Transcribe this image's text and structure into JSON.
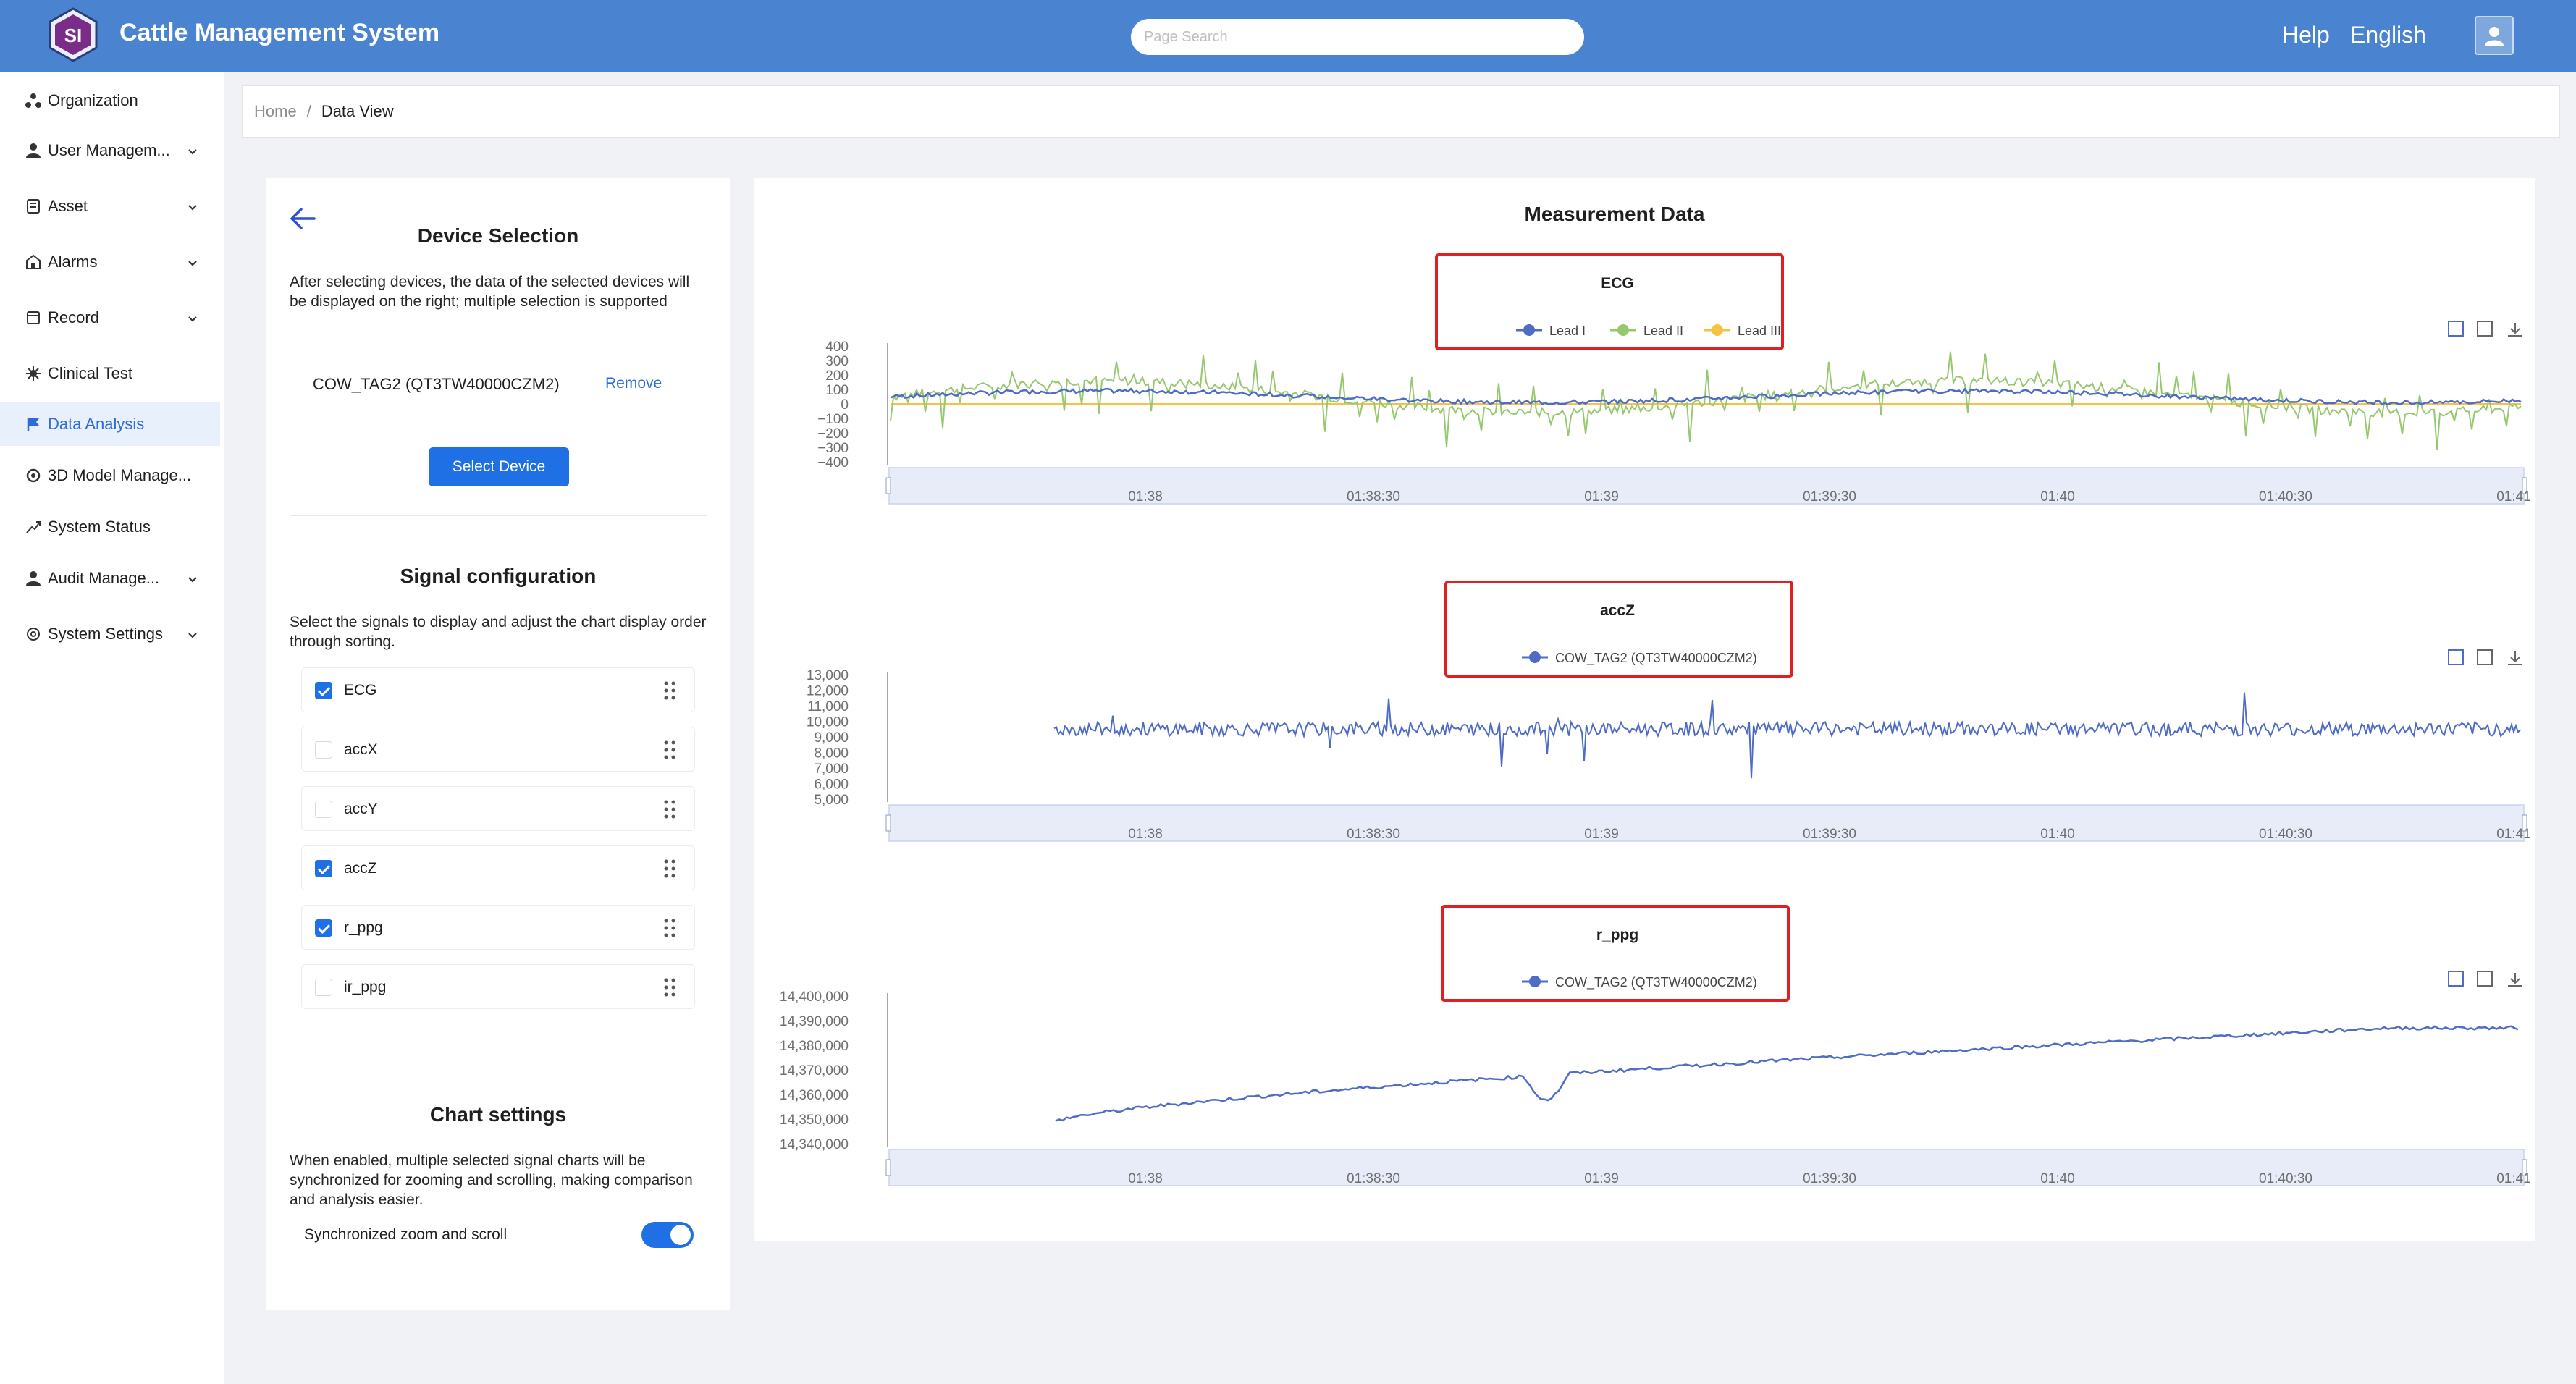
{
  "header": {
    "logo_text": "SI",
    "title": "Cattle Management System",
    "search_placeholder": "Page Search",
    "help": "Help",
    "language": "English"
  },
  "sidebar": {
    "items": [
      {
        "label": "Organization",
        "icon": "organization-icon",
        "expandable": false,
        "active": false
      },
      {
        "label": "User Managem...",
        "icon": "user-icon",
        "expandable": true,
        "active": false
      },
      {
        "label": "Asset",
        "icon": "asset-icon",
        "expandable": true,
        "active": false
      },
      {
        "label": "Alarms",
        "icon": "alarm-icon",
        "expandable": true,
        "active": false
      },
      {
        "label": "Record",
        "icon": "record-icon",
        "expandable": true,
        "active": false
      },
      {
        "label": "Clinical Test",
        "icon": "clinical-test-icon",
        "expandable": false,
        "active": false
      },
      {
        "label": "Data Analysis",
        "icon": "flag-icon",
        "expandable": false,
        "active": true
      },
      {
        "label": "3D Model Manage...",
        "icon": "3d-model-icon",
        "expandable": false,
        "active": false
      },
      {
        "label": "System Status",
        "icon": "trend-icon",
        "expandable": false,
        "active": false
      },
      {
        "label": "Audit Manage...",
        "icon": "audit-icon",
        "expandable": true,
        "active": false
      },
      {
        "label": "System Settings",
        "icon": "settings-icon",
        "expandable": true,
        "active": false
      }
    ]
  },
  "breadcrumb": {
    "home": "Home",
    "separator": "/",
    "current": "Data View"
  },
  "device_selection": {
    "title": "Device Selection",
    "description": "After selecting devices, the data of the selected devices will be displayed on the right; multiple selection is supported",
    "device": "COW_TAG2 (QT3TW40000CZM2)",
    "remove_label": "Remove",
    "select_button": "Select Device"
  },
  "signal_config": {
    "title": "Signal configuration",
    "description": "Select the signals to display and adjust the chart display order through sorting.",
    "signals": [
      {
        "name": "ECG",
        "checked": true
      },
      {
        "name": "accX",
        "checked": false
      },
      {
        "name": "accY",
        "checked": false
      },
      {
        "name": "accZ",
        "checked": true
      },
      {
        "name": "r_ppg",
        "checked": true
      },
      {
        "name": "ir_ppg",
        "checked": false
      }
    ]
  },
  "chart_settings": {
    "title": "Chart settings",
    "description": "When enabled, multiple selected signal charts will be synchronized for zooming and scrolling, making comparison and analysis easier.",
    "toggle_label": "Synchronized zoom and scroll",
    "toggle_on": true
  },
  "measurement": {
    "title": "Measurement Data"
  },
  "colors": {
    "accent": "#1f6fe5",
    "header": "#4a84d0",
    "lead1": "#4f6cc4",
    "lead2": "#95c86f",
    "lead3": "#f5c342",
    "highlight": "#e02020"
  },
  "chart_data": [
    {
      "type": "line",
      "title": "ECG",
      "series": [
        {
          "name": "Lead I"
        },
        {
          "name": "Lead II"
        },
        {
          "name": "Lead III"
        }
      ],
      "y_ticks": [
        "400",
        "300",
        "200",
        "100",
        "0",
        "−100",
        "−200",
        "−300",
        "−400"
      ],
      "ylim": [
        -400,
        400
      ],
      "x_ticks": [
        "01:38",
        "01:38:30",
        "01:39",
        "01:39:30",
        "01:40",
        "01:40:30",
        "01:41"
      ],
      "data_zoom": true
    },
    {
      "type": "line",
      "title": "accZ",
      "series": [
        {
          "name": "COW_TAG2 (QT3TW40000CZM2)"
        }
      ],
      "y_ticks": [
        "13,000",
        "12,000",
        "11,000",
        "10,000",
        "9,000",
        "8,000",
        "7,000",
        "6,000",
        "5,000"
      ],
      "ylim": [
        5000,
        13000
      ],
      "x_ticks": [
        "01:38",
        "01:38:30",
        "01:39",
        "01:39:30",
        "01:40",
        "01:40:30",
        "01:41"
      ],
      "data_zoom": true
    },
    {
      "type": "line",
      "title": "r_ppg",
      "series": [
        {
          "name": "COW_TAG2 (QT3TW40000CZM2)"
        }
      ],
      "y_ticks": [
        "14,400,000",
        "14,390,000",
        "14,380,000",
        "14,370,000",
        "14,360,000",
        "14,350,000",
        "14,340,000"
      ],
      "ylim": [
        14340000,
        14400000
      ],
      "x_ticks": [
        "01:38",
        "01:38:30",
        "01:39",
        "01:39:30",
        "01:40",
        "01:40:30",
        "01:41"
      ],
      "data_zoom": true
    }
  ]
}
